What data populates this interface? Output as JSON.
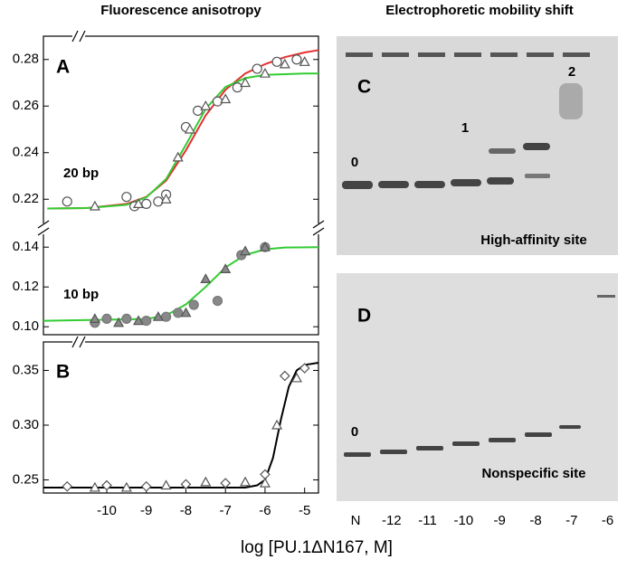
{
  "figure": {
    "left_title": "Fluorescence anisotropy",
    "right_title": "Electrophoretic mobility shift",
    "xlabel": "log [PU.1ΔN167, M]"
  },
  "chart_data": [
    {
      "type": "scatter",
      "panel": "A",
      "annotation": "20 bp",
      "xlim": [
        -11.6,
        -4.65
      ],
      "ylim": [
        0.21,
        0.29
      ],
      "yticks": [
        0.22,
        0.24,
        0.26,
        0.28
      ],
      "series": [
        {
          "style": "markers",
          "marker": "circle",
          "color": "#555555",
          "x": [
            -11,
            -9.5,
            -9.3,
            -9,
            -8.7,
            -8.5,
            -8,
            -7.7,
            -7.2,
            -6.7,
            -6.2,
            -5.7,
            -5.2
          ],
          "values": [
            0.219,
            0.221,
            0.217,
            0.218,
            0.219,
            0.222,
            0.251,
            0.258,
            0.262,
            0.268,
            0.276,
            0.279,
            0.28
          ]
        },
        {
          "style": "markers",
          "marker": "triangle",
          "color": "#555555",
          "x": [
            -10.3,
            -9.2,
            -8.5,
            -8.2,
            -7.9,
            -7.5,
            -7,
            -6.5,
            -6,
            -5.5,
            -5
          ],
          "values": [
            0.217,
            0.218,
            0.22,
            0.238,
            0.25,
            0.26,
            0.263,
            0.27,
            0.274,
            0.278,
            0.279
          ]
        },
        {
          "style": "line",
          "color": "#e53030",
          "x": [
            -11.5,
            -10.5,
            -9.5,
            -9,
            -8.5,
            -8,
            -7.5,
            -7,
            -6.5,
            -6,
            -5.5,
            -5,
            -4.65
          ],
          "values": [
            0.216,
            0.2162,
            0.218,
            0.221,
            0.228,
            0.241,
            0.256,
            0.267,
            0.274,
            0.278,
            0.281,
            0.283,
            0.284
          ]
        },
        {
          "style": "line",
          "color": "#33cc33",
          "x": [
            -11.5,
            -10.5,
            -9.5,
            -9,
            -8.5,
            -8,
            -7.5,
            -7,
            -6.5,
            -6,
            -5,
            -4.65
          ],
          "values": [
            0.216,
            0.2162,
            0.2176,
            0.2208,
            0.2287,
            0.2434,
            0.2588,
            0.2682,
            0.272,
            0.2734,
            0.274,
            0.274
          ]
        }
      ]
    },
    {
      "type": "scatter",
      "annotation": "10 bp",
      "xlim": [
        -11.6,
        -4.65
      ],
      "ylim": [
        0.096,
        0.146
      ],
      "yticks": [
        {
          "value": 0.1,
          "label": "0.10"
        },
        0.12,
        0.14
      ],
      "series": [
        {
          "style": "markers",
          "marker": "circle",
          "color": "#777777",
          "fill": "#888888",
          "x": [
            -10.3,
            -10,
            -9.5,
            -9,
            -8.5,
            -8.2,
            -7.8,
            -7.2,
            -6.6,
            -6
          ],
          "values": [
            0.102,
            0.104,
            0.104,
            0.103,
            0.105,
            0.107,
            0.111,
            0.113,
            0.136,
            0.14
          ]
        },
        {
          "style": "markers",
          "marker": "triangle",
          "color": "#555555",
          "fill": "#888888",
          "x": [
            -10.3,
            -9.7,
            -9.2,
            -8.7,
            -8,
            -7.5,
            -7,
            -6.5,
            -6
          ],
          "values": [
            0.104,
            0.102,
            0.103,
            0.105,
            0.107,
            0.124,
            0.129,
            0.138,
            0.14
          ]
        },
        {
          "style": "line",
          "color": "#33cc33",
          "x": [
            -11.6,
            -9,
            -8.5,
            -8,
            -7.5,
            -7,
            -6.5,
            -6,
            -5.5,
            -4.65
          ],
          "values": [
            0.103,
            0.1039,
            0.1057,
            0.1112,
            0.12,
            0.1298,
            0.1361,
            0.1389,
            0.1398,
            0.14
          ]
        }
      ]
    },
    {
      "type": "scatter",
      "panel": "B",
      "xlim": [
        -11.6,
        -4.65
      ],
      "ylim": [
        0.238,
        0.376
      ],
      "yticks": [
        0.25,
        {
          "value": 0.3,
          "label": "0.30"
        },
        0.35
      ],
      "xticks": [
        -10,
        -9,
        -8,
        -7,
        -6,
        -5
      ],
      "series": [
        {
          "style": "markers",
          "marker": "diamond",
          "color": "#555555",
          "x": [
            -11,
            -10,
            -9,
            -8,
            -7,
            -6,
            -5.5,
            -5
          ],
          "values": [
            0.244,
            0.245,
            0.244,
            0.246,
            0.247,
            0.255,
            0.345,
            0.352
          ]
        },
        {
          "style": "markers",
          "marker": "triangle",
          "color": "#555555",
          "x": [
            -10.3,
            -9.5,
            -8.5,
            -7.5,
            -6.5,
            -6,
            -5.7,
            -5.2
          ],
          "values": [
            0.243,
            0.243,
            0.245,
            0.248,
            0.248,
            0.247,
            0.3,
            0.343
          ]
        },
        {
          "style": "line",
          "color": "#000000",
          "x": [
            -11.6,
            -6.5,
            -6.2,
            -6,
            -5.8,
            -5.6,
            -5.4,
            -5.2,
            -5,
            -4.65
          ],
          "values": [
            0.243,
            0.243,
            0.245,
            0.25,
            0.27,
            0.305,
            0.335,
            0.35,
            0.355,
            0.357
          ]
        }
      ]
    }
  ],
  "gel": {
    "panels": [
      {
        "letter": "C",
        "bands": [
          "0",
          "1",
          "2"
        ],
        "caption": "High-affinity site"
      },
      {
        "letter": "D",
        "bands": [
          "0"
        ],
        "caption": "Nonspecific site"
      }
    ],
    "lanes": [
      "N",
      "-12",
      "-11",
      "-10",
      "-9",
      "-8",
      "-7",
      "-6"
    ]
  }
}
